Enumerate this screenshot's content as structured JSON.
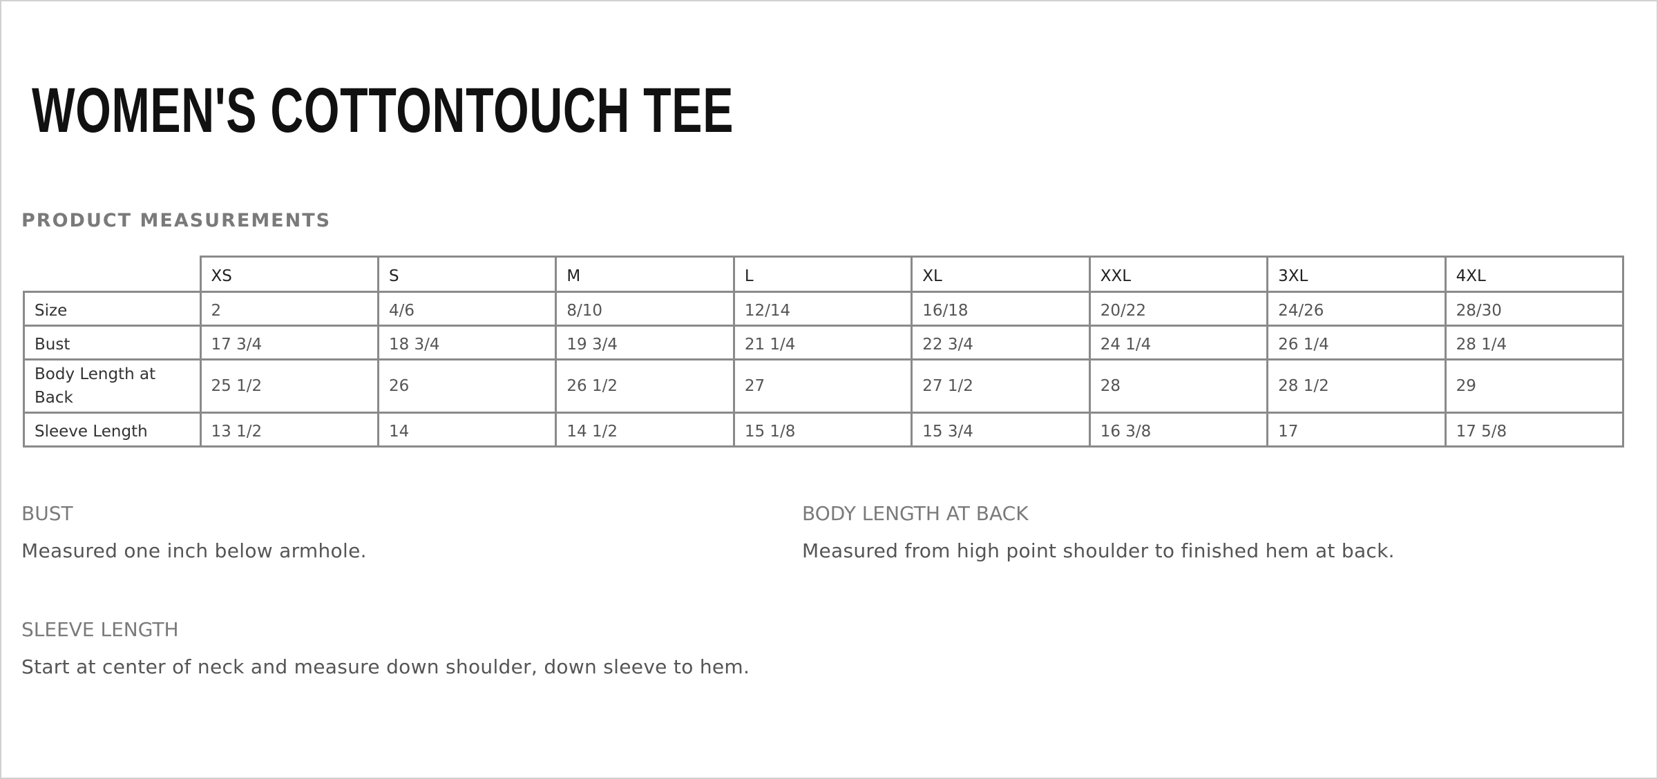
{
  "title": "WOMEN'S COTTONTOUCH TEE",
  "section_heading": "PRODUCT MEASUREMENTS",
  "table": {
    "columns": [
      "XS",
      "S",
      "M",
      "L",
      "XL",
      "XXL",
      "3XL",
      "4XL"
    ],
    "rows": [
      {
        "label": "Size",
        "values": [
          "2",
          "4/6",
          "8/10",
          "12/14",
          "16/18",
          "20/22",
          "24/26",
          "28/30"
        ]
      },
      {
        "label": "Bust",
        "values": [
          "17 3/4",
          "18 3/4",
          "19 3/4",
          "21 1/4",
          "22 3/4",
          "24 1/4",
          "26 1/4",
          "28 1/4"
        ]
      },
      {
        "label": "Body Length at Back",
        "values": [
          "25 1/2",
          "26",
          "26 1/2",
          "27",
          "27 1/2",
          "28",
          "28 1/2",
          "29"
        ]
      },
      {
        "label": "Sleeve Length",
        "values": [
          "13 1/2",
          "14",
          "14 1/2",
          "15 1/8",
          "15 3/4",
          "16 3/8",
          "17",
          "17 5/8"
        ]
      }
    ]
  },
  "definitions": [
    {
      "title": "BUST",
      "text": "Measured one inch below armhole."
    },
    {
      "title": "BODY LENGTH AT BACK",
      "text": "Measured from high point shoulder to finished hem at back."
    },
    {
      "title": "SLEEVE LENGTH",
      "text": "Start at center of neck and measure down shoulder, down sleeve to hem."
    }
  ]
}
